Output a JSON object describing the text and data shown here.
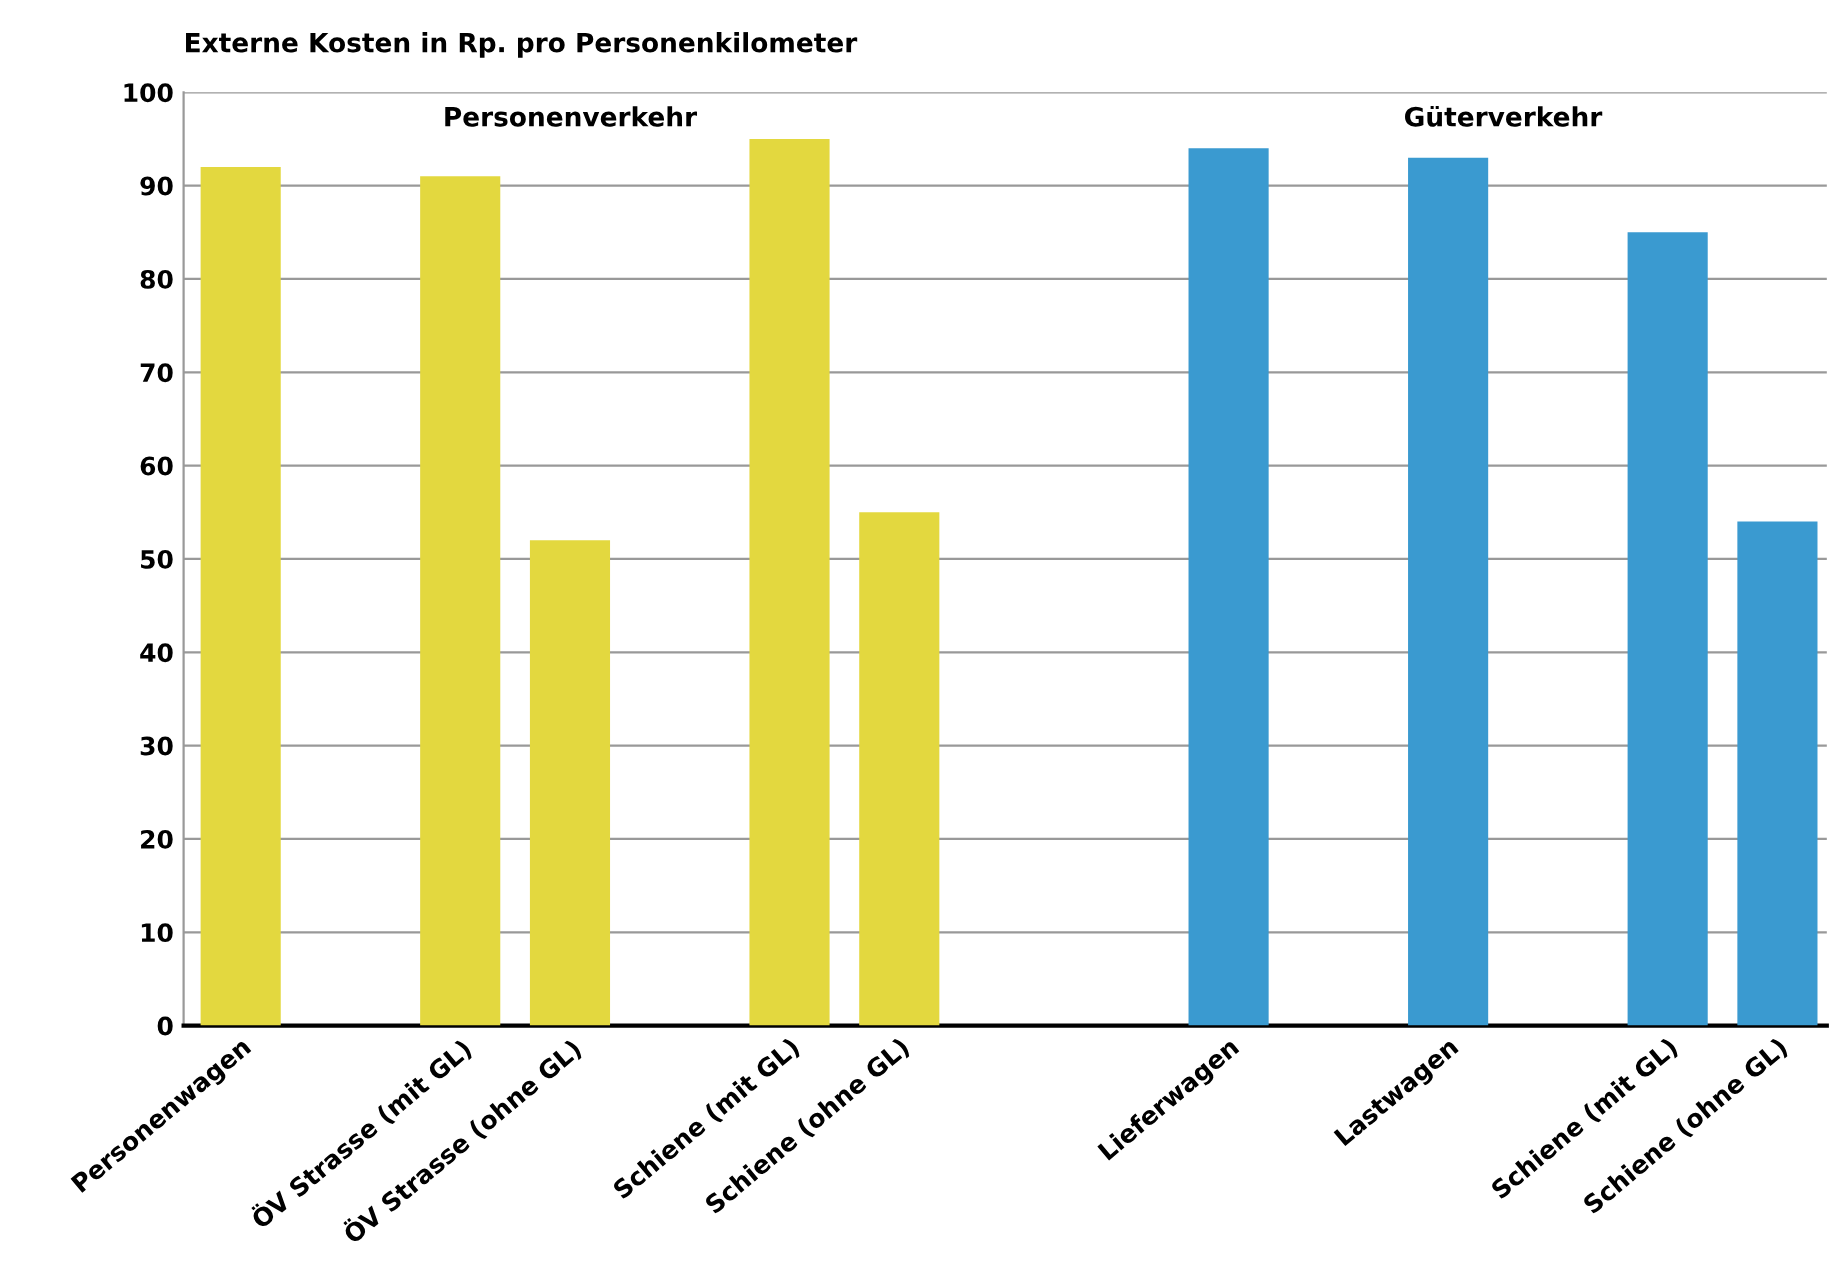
{
  "chart_data": {
    "type": "bar",
    "title": "Externe Kosten in Rp. pro Personenkilometer",
    "categories": [
      "Personenwagen",
      null,
      "ÖV Strasse (mit GL)",
      "ÖV Strasse (ohne GL)",
      null,
      "Schiene (mit GL)",
      "Schiene (ohne GL)",
      null,
      null,
      "Lieferwagen",
      null,
      "Lastwagen",
      null,
      "Schiene (mit GL)",
      "Schiene (ohne GL)"
    ],
    "series": [
      {
        "name": "Personenverkehr",
        "color": "#e3d83f",
        "values": [
          92,
          null,
          91,
          52,
          null,
          95,
          55,
          null,
          null,
          null,
          null,
          null,
          null,
          null,
          null
        ]
      },
      {
        "name": "Güterverkehr",
        "color": "#3a9ad0",
        "values": [
          null,
          null,
          null,
          null,
          null,
          null,
          null,
          null,
          null,
          94,
          null,
          93,
          null,
          85,
          54
        ]
      }
    ],
    "ylim": [
      0,
      100
    ],
    "yticks": [
      0,
      10,
      20,
      30,
      40,
      50,
      60,
      70,
      80,
      90,
      100
    ],
    "grid": "y"
  }
}
